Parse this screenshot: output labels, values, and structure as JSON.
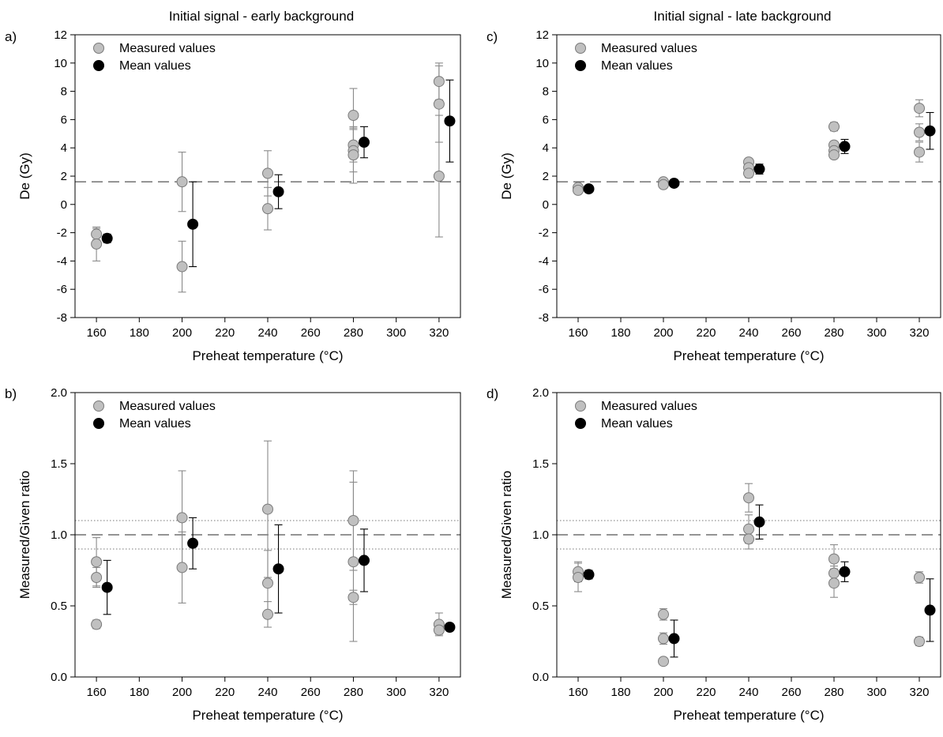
{
  "chart_data": [
    {
      "type": "scatter",
      "panel": "a)",
      "title": "Initial signal - early background",
      "xlabel": "Preheat temperature (°C)",
      "ylabel": "De (Gy)",
      "xlim": [
        150,
        330
      ],
      "ylim": [
        -8,
        12
      ],
      "xticks": [
        160,
        180,
        200,
        220,
        240,
        260,
        280,
        300,
        320
      ],
      "yticks": [
        -8,
        -6,
        -4,
        -2,
        0,
        2,
        4,
        6,
        8,
        10,
        12
      ],
      "legend": {
        "placement": "top-left",
        "entries": [
          "Measured values",
          "Mean values"
        ]
      },
      "reference_lines": [
        {
          "y": 1.6,
          "style": "dashed"
        }
      ],
      "series": [
        {
          "name": "Measured values",
          "color": "#c0c0c0",
          "points": [
            {
              "x": 160,
              "y": -2.1,
              "err": 0.4
            },
            {
              "x": 160,
              "y": -2.8,
              "err": 1.2
            },
            {
              "x": 200,
              "y": 1.6,
              "err": 2.1
            },
            {
              "x": 200,
              "y": -4.4,
              "err": 1.8
            },
            {
              "x": 240,
              "y": 2.2,
              "err": 1.6
            },
            {
              "x": 240,
              "y": -0.3,
              "err": 1.5
            },
            {
              "x": 280,
              "y": 6.3,
              "err": 1.9
            },
            {
              "x": 280,
              "y": 4.2,
              "err": 1.2
            },
            {
              "x": 280,
              "y": 3.8,
              "err": 1.5
            },
            {
              "x": 280,
              "y": 3.5,
              "err": 2.0
            },
            {
              "x": 320,
              "y": 8.7,
              "err": 1.3
            },
            {
              "x": 320,
              "y": 7.1,
              "err": 2.7
            },
            {
              "x": 320,
              "y": 2.0,
              "err": 4.3
            }
          ]
        },
        {
          "name": "Mean values",
          "color": "#000000",
          "points": [
            {
              "x": 165,
              "y": -2.4,
              "err": 0.3
            },
            {
              "x": 205,
              "y": -1.4,
              "err": 3.0
            },
            {
              "x": 245,
              "y": 0.9,
              "err": 1.2
            },
            {
              "x": 285,
              "y": 4.4,
              "err": 1.1
            },
            {
              "x": 325,
              "y": 5.9,
              "err": 2.9
            }
          ]
        }
      ]
    },
    {
      "type": "scatter",
      "panel": "c)",
      "title": "Initial signal - late background",
      "xlabel": "Preheat temperature (°C)",
      "ylabel": "De (Gy)",
      "xlim": [
        150,
        330
      ],
      "ylim": [
        -8,
        12
      ],
      "xticks": [
        160,
        180,
        200,
        220,
        240,
        260,
        280,
        300,
        320
      ],
      "yticks": [
        -8,
        -6,
        -4,
        -2,
        0,
        2,
        4,
        6,
        8,
        10,
        12
      ],
      "legend": {
        "placement": "top-left",
        "entries": [
          "Measured values",
          "Mean values"
        ]
      },
      "reference_lines": [
        {
          "y": 1.6,
          "style": "dashed"
        }
      ],
      "series": [
        {
          "name": "Measured values",
          "color": "#c0c0c0",
          "points": [
            {
              "x": 160,
              "y": 1.2,
              "err": 0.2
            },
            {
              "x": 160,
              "y": 1.0,
              "err": 0.2
            },
            {
              "x": 200,
              "y": 1.6,
              "err": 0.15
            },
            {
              "x": 200,
              "y": 1.4,
              "err": 0.15
            },
            {
              "x": 240,
              "y": 3.0,
              "err": 0.2
            },
            {
              "x": 240,
              "y": 2.6,
              "err": 0.25
            },
            {
              "x": 240,
              "y": 2.2,
              "err": 0.3
            },
            {
              "x": 280,
              "y": 5.5,
              "err": 0.3
            },
            {
              "x": 280,
              "y": 4.2,
              "err": 0.2
            },
            {
              "x": 280,
              "y": 3.8,
              "err": 0.2
            },
            {
              "x": 280,
              "y": 3.5,
              "err": 0.2
            },
            {
              "x": 320,
              "y": 6.8,
              "err": 0.6
            },
            {
              "x": 320,
              "y": 5.1,
              "err": 0.6
            },
            {
              "x": 320,
              "y": 3.7,
              "err": 0.7
            }
          ]
        },
        {
          "name": "Mean values",
          "color": "#000000",
          "points": [
            {
              "x": 165,
              "y": 1.1,
              "err": 0.1
            },
            {
              "x": 205,
              "y": 1.5,
              "err": 0.05
            },
            {
              "x": 245,
              "y": 2.5,
              "err": 0.35
            },
            {
              "x": 285,
              "y": 4.1,
              "err": 0.5
            },
            {
              "x": 325,
              "y": 5.2,
              "err": 1.3
            }
          ]
        }
      ]
    },
    {
      "type": "scatter",
      "panel": "b)",
      "title": "",
      "xlabel": "Preheat temperature (°C)",
      "ylabel": "Measured/Given ratio",
      "xlim": [
        150,
        330
      ],
      "ylim": [
        0,
        2
      ],
      "xticks": [
        160,
        180,
        200,
        220,
        240,
        260,
        280,
        300,
        320
      ],
      "yticks": [
        0.0,
        0.5,
        1.0,
        1.5,
        2.0
      ],
      "ytick_labels": [
        "0.0",
        "0.5",
        "1.0",
        "1.5",
        "2.0"
      ],
      "legend": {
        "placement": "top-left",
        "entries": [
          "Measured values",
          "Mean values"
        ]
      },
      "reference_lines": [
        {
          "y": 1.0,
          "style": "dashed"
        },
        {
          "y": 1.1,
          "style": "dotted"
        },
        {
          "y": 0.9,
          "style": "dotted"
        }
      ],
      "series": [
        {
          "name": "Measured values",
          "color": "#c0c0c0",
          "points": [
            {
              "x": 160,
              "y": 0.81,
              "err": 0.17
            },
            {
              "x": 160,
              "y": 0.7,
              "err": 0.07
            },
            {
              "x": 160,
              "y": 0.37,
              "err": 0.03
            },
            {
              "x": 200,
              "y": 1.12,
              "err": 0.33
            },
            {
              "x": 200,
              "y": 0.77,
              "err": 0.25
            },
            {
              "x": 240,
              "y": 1.18,
              "err": 0.48
            },
            {
              "x": 240,
              "y": 0.66,
              "err": 0.23
            },
            {
              "x": 240,
              "y": 0.44,
              "err": 0.09
            },
            {
              "x": 280,
              "y": 1.1,
              "err": 0.35
            },
            {
              "x": 280,
              "y": 0.81,
              "err": 0.56
            },
            {
              "x": 280,
              "y": 0.56,
              "err": 0.05
            },
            {
              "x": 320,
              "y": 0.37,
              "err": 0.08
            },
            {
              "x": 320,
              "y": 0.33,
              "err": 0.03
            }
          ]
        },
        {
          "name": "Mean values",
          "color": "#000000",
          "points": [
            {
              "x": 165,
              "y": 0.63,
              "err": 0.19
            },
            {
              "x": 205,
              "y": 0.94,
              "err": 0.18
            },
            {
              "x": 245,
              "y": 0.76,
              "err": 0.31
            },
            {
              "x": 285,
              "y": 0.82,
              "err": 0.22
            },
            {
              "x": 325,
              "y": 0.35,
              "err": 0.01
            }
          ]
        }
      ]
    },
    {
      "type": "scatter",
      "panel": "d)",
      "title": "",
      "xlabel": "Preheat temperature (°C)",
      "ylabel": "Measured/Given ratio",
      "xlim": [
        150,
        330
      ],
      "ylim": [
        0,
        2
      ],
      "xticks": [
        160,
        180,
        200,
        220,
        240,
        260,
        280,
        300,
        320
      ],
      "yticks": [
        0.0,
        0.5,
        1.0,
        1.5,
        2.0
      ],
      "ytick_labels": [
        "0.0",
        "0.5",
        "1.0",
        "1.5",
        "2.0"
      ],
      "legend": {
        "placement": "top-left",
        "entries": [
          "Measured values",
          "Mean values"
        ]
      },
      "reference_lines": [
        {
          "y": 1.0,
          "style": "dashed"
        },
        {
          "y": 1.1,
          "style": "dotted"
        },
        {
          "y": 0.9,
          "style": "dotted"
        }
      ],
      "series": [
        {
          "name": "Measured values",
          "color": "#c0c0c0",
          "points": [
            {
              "x": 160,
              "y": 0.74,
              "err": 0.07
            },
            {
              "x": 160,
              "y": 0.7,
              "err": 0.1
            },
            {
              "x": 200,
              "y": 0.44,
              "err": 0.04
            },
            {
              "x": 200,
              "y": 0.27,
              "err": 0.04
            },
            {
              "x": 200,
              "y": 0.11,
              "err": 0.02
            },
            {
              "x": 240,
              "y": 1.26,
              "err": 0.1
            },
            {
              "x": 240,
              "y": 1.04,
              "err": 0.1
            },
            {
              "x": 240,
              "y": 0.97,
              "err": 0.07
            },
            {
              "x": 280,
              "y": 0.83,
              "err": 0.1
            },
            {
              "x": 280,
              "y": 0.73,
              "err": 0.05
            },
            {
              "x": 280,
              "y": 0.66,
              "err": 0.1
            },
            {
              "x": 320,
              "y": 0.7,
              "err": 0.04
            },
            {
              "x": 320,
              "y": 0.25,
              "err": 0.03
            }
          ]
        },
        {
          "name": "Mean values",
          "color": "#000000",
          "points": [
            {
              "x": 165,
              "y": 0.72,
              "err": 0.03
            },
            {
              "x": 205,
              "y": 0.27,
              "err": 0.13
            },
            {
              "x": 245,
              "y": 1.09,
              "err": 0.12
            },
            {
              "x": 285,
              "y": 0.74,
              "err": 0.07
            },
            {
              "x": 325,
              "y": 0.47,
              "err": 0.22
            }
          ]
        }
      ]
    }
  ]
}
